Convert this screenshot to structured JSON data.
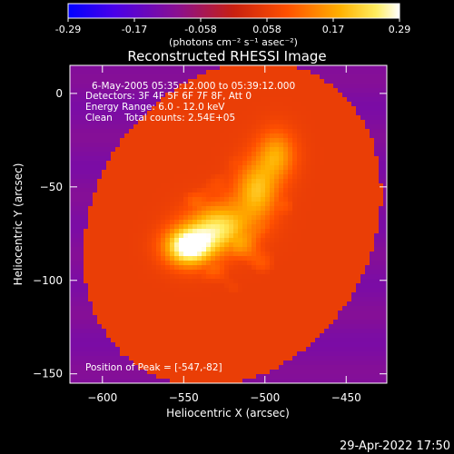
{
  "chart_data": {
    "type": "heatmap",
    "title": "Reconstructed RHESSI Image",
    "xlabel": "Heliocentric X (arcsec)",
    "ylabel": "Heliocentric Y (arcsec)",
    "xlim": [
      -620,
      -425
    ],
    "ylim": [
      -155,
      15
    ],
    "xticks": [
      -600,
      -550,
      -500,
      -450
    ],
    "yticks": [
      0,
      -50,
      -100,
      -150
    ],
    "colorbar": {
      "ticks": [
        "-0.29",
        "-0.17",
        "-0.058",
        "0.058",
        "0.17",
        "0.29"
      ],
      "range": [
        -0.29,
        0.29
      ],
      "unit_label": "(photons cm⁻² s⁻¹ asec⁻²)"
    },
    "annotations": [
      "6-May-2005 05:35:12.000 to 05:39:12.000",
      "Detectors: 3F 4F 5F 6F 7F 8F, Att 0",
      "Energy Range: 6.0 - 12.0 keV",
      "Clean    Total counts: 2.54E+05"
    ],
    "peak_label": "Position of Peak = [-547,-82]",
    "peak": [
      -547,
      -82
    ],
    "sources": [
      {
        "x": -547,
        "y": -82,
        "amplitude": 1.0,
        "sigma": [
          10,
          7
        ]
      },
      {
        "x": -528,
        "y": -72,
        "amplitude": 0.7,
        "sigma": [
          13,
          9
        ]
      },
      {
        "x": -505,
        "y": -52,
        "amplitude": 0.55,
        "sigma": [
          9,
          11
        ]
      },
      {
        "x": -493,
        "y": -33,
        "amplitude": 0.45,
        "sigma": [
          8,
          9
        ]
      }
    ],
    "colors": {
      "background": "#000000",
      "image_edge": "#5a2a8a"
    }
  },
  "footer": {
    "timestamp": "29-Apr-2022 17:50"
  }
}
